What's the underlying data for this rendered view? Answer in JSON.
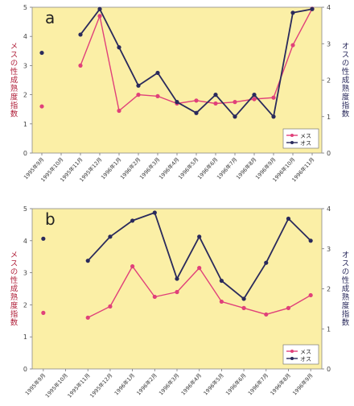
{
  "colors": {
    "plot_bg": "#fbefa6",
    "female": "#e0407a",
    "male": "#2a2a5c",
    "left_axis_text": "#b0203a",
    "right_axis_text": "#2a2a5c"
  },
  "chart_data": [
    {
      "type": "line",
      "panel_label": "a",
      "x": [
        "1995年9月",
        "1995年10月",
        "1995年11月",
        "1995年12月",
        "1996年1月",
        "1996年2月",
        "1996年3月",
        "1996年4月",
        "1996年5月",
        "1996年6月",
        "1996年7月",
        "1996年8月",
        "1996年9月",
        "1996年10月",
        "1996年11月"
      ],
      "left_axis": {
        "label": "メスの性成熟度指数",
        "ylim": [
          0,
          5
        ],
        "ticks": [
          "0",
          "1",
          "2",
          "3",
          "4",
          "5"
        ]
      },
      "right_axis": {
        "label": "オスの性成熟度指数",
        "ylim": [
          0,
          4
        ],
        "ticks": [
          "0",
          "1",
          "2",
          "3",
          "4"
        ]
      },
      "legend": {
        "position": "bottom-right",
        "entries": [
          "メス",
          "オス"
        ]
      },
      "series": [
        {
          "name": "メス",
          "axis": "left",
          "values": [
            1.6,
            null,
            3.0,
            4.7,
            1.45,
            2.0,
            1.95,
            1.7,
            1.8,
            1.7,
            1.75,
            1.85,
            1.9,
            3.7,
            4.95
          ]
        },
        {
          "name": "オス",
          "axis": "right",
          "values": [
            2.75,
            null,
            3.25,
            3.95,
            2.9,
            1.85,
            2.2,
            1.4,
            1.1,
            1.6,
            1.0,
            1.6,
            1.0,
            3.85,
            3.95
          ]
        }
      ]
    },
    {
      "type": "line",
      "panel_label": "b",
      "x": [
        "1995年9月",
        "1995年10月",
        "1995年11月",
        "1995年12月",
        "1996年1月",
        "1996年2月",
        "1996年3月",
        "1996年4月",
        "1996年5月",
        "1996年6月",
        "1996年7月",
        "1996年8月",
        "1996年9月"
      ],
      "left_axis": {
        "label": "メスの性成熟度指数",
        "ylim": [
          0,
          5
        ],
        "ticks": [
          "0",
          "1",
          "2",
          "3",
          "4",
          "5"
        ]
      },
      "right_axis": {
        "label": "オスの性成熟度指数",
        "ylim": [
          0,
          4
        ],
        "ticks": [
          "0",
          "1",
          "2",
          "3",
          "4"
        ]
      },
      "legend": {
        "position": "bottom-right",
        "entries": [
          "メス",
          "オス"
        ]
      },
      "series": [
        {
          "name": "メス",
          "axis": "left",
          "values": [
            1.75,
            null,
            1.6,
            1.95,
            3.2,
            2.25,
            2.4,
            3.15,
            2.1,
            1.9,
            1.7,
            1.9,
            2.3
          ]
        },
        {
          "name": "オス",
          "axis": "right",
          "values": [
            3.25,
            null,
            2.7,
            3.3,
            3.7,
            3.9,
            2.25,
            3.3,
            2.2,
            1.75,
            2.65,
            3.75,
            3.2
          ]
        }
      ]
    }
  ]
}
